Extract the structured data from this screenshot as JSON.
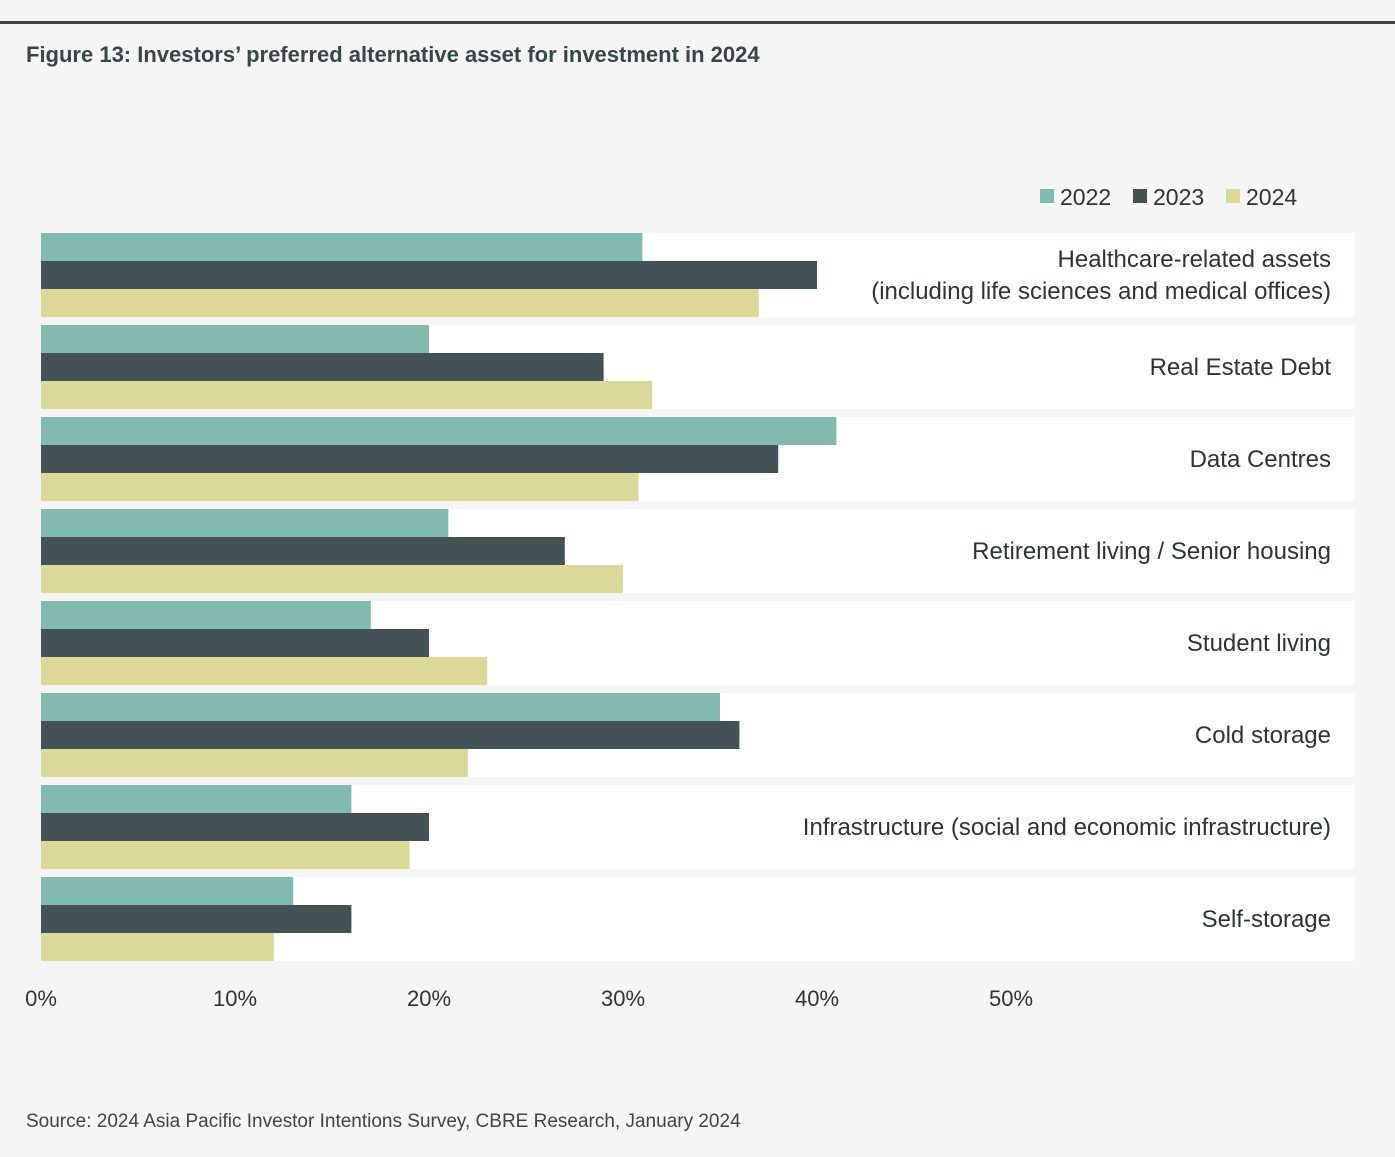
{
  "figure": {
    "title": "Figure 13:  Investors’ preferred alternative asset for investment in 2024",
    "source": "Source: 2024 Asia Pacific Investor Intentions Survey, CBRE Research, January 2024"
  },
  "chart_data": {
    "type": "bar",
    "orientation": "horizontal",
    "title": "Figure 13:  Investors’ preferred alternative asset for investment in 2024",
    "xlabel": "",
    "ylabel": "",
    "xlim": [
      0,
      50
    ],
    "x_ticks": [
      "0%",
      "10%",
      "20%",
      "30%",
      "40%",
      "50%"
    ],
    "legend_position": "top-right",
    "categories": [
      [
        "Healthcare-related assets",
        "(including life sciences and medical offices)"
      ],
      [
        "Real Estate Debt"
      ],
      [
        "Data Centres"
      ],
      [
        "Retirement living / Senior housing"
      ],
      [
        "Student living"
      ],
      [
        "Cold storage"
      ],
      [
        "Infrastructure (social and economic infrastructure)"
      ],
      [
        "Self-storage"
      ]
    ],
    "series": [
      {
        "name": "2022",
        "color": "#82bbad",
        "values": [
          31,
          20,
          41,
          21,
          17,
          35,
          16,
          13
        ]
      },
      {
        "name": "2023",
        "color": "#435254",
        "values": [
          40,
          29,
          38,
          27,
          20,
          36,
          20,
          16
        ]
      },
      {
        "name": "2024",
        "color": "#dbd99a",
        "values": [
          37,
          31.5,
          30.8,
          30,
          23,
          22,
          19,
          12
        ]
      }
    ]
  }
}
